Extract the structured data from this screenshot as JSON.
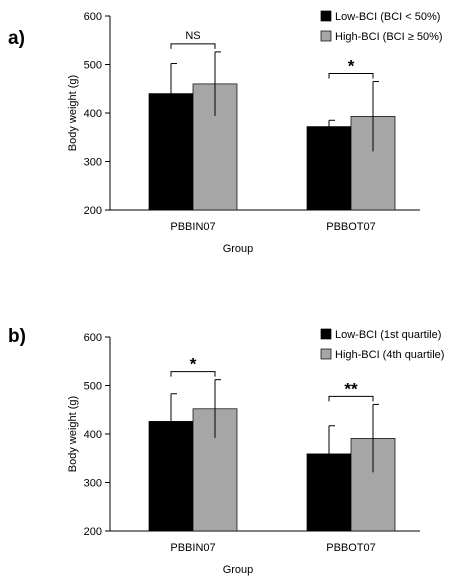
{
  "panels": [
    {
      "panel_label": "a)",
      "chart_data": {
        "type": "bar",
        "categories": [
          "PBBIN07",
          "PBBOT07"
        ],
        "series": [
          {
            "name": "Low-BCI (BCI < 50%)",
            "color": "#000000",
            "values": [
              440,
              372
            ],
            "errors": [
              62,
              13
            ]
          },
          {
            "name": "High-BCI (BCI ≥ 50%)",
            "color": "#a6a6a6",
            "values": [
              460,
              393
            ],
            "errors": [
              66,
              72
            ]
          }
        ],
        "xlabel": "Group",
        "ylabel": "Body weight (g)",
        "ylim": [
          200,
          600
        ],
        "yticks": [
          200,
          300,
          400,
          500,
          600
        ],
        "ytick_labels": [
          "200",
          "300",
          "400",
          "500",
          "600"
        ],
        "grid": false,
        "legend_position": "top-right",
        "annotations": [
          {
            "category": "PBBIN07",
            "label": "NS"
          },
          {
            "category": "PBBOT07",
            "label": "*"
          }
        ]
      }
    },
    {
      "panel_label": "b)",
      "chart_data": {
        "type": "bar",
        "categories": [
          "PBBIN07",
          "PBBOT07"
        ],
        "series": [
          {
            "name": "Low-BCI (1st quartile)",
            "color": "#000000",
            "values": [
              426,
              359
            ],
            "errors": [
              57,
              58
            ]
          },
          {
            "name": "High-BCI (4th quartile)",
            "color": "#a6a6a6",
            "values": [
              452,
              391
            ],
            "errors": [
              60,
              70
            ]
          }
        ],
        "xlabel": "Group",
        "ylabel": "Body weight (g)",
        "ylim": [
          200,
          600
        ],
        "yticks": [
          200,
          300,
          400,
          500,
          600
        ],
        "ytick_labels": [
          "200",
          "300",
          "400",
          "500",
          "600"
        ],
        "grid": false,
        "legend_position": "top-right",
        "annotations": [
          {
            "category": "PBBIN07",
            "label": "*"
          },
          {
            "category": "PBBOT07",
            "label": "**"
          }
        ]
      }
    }
  ]
}
